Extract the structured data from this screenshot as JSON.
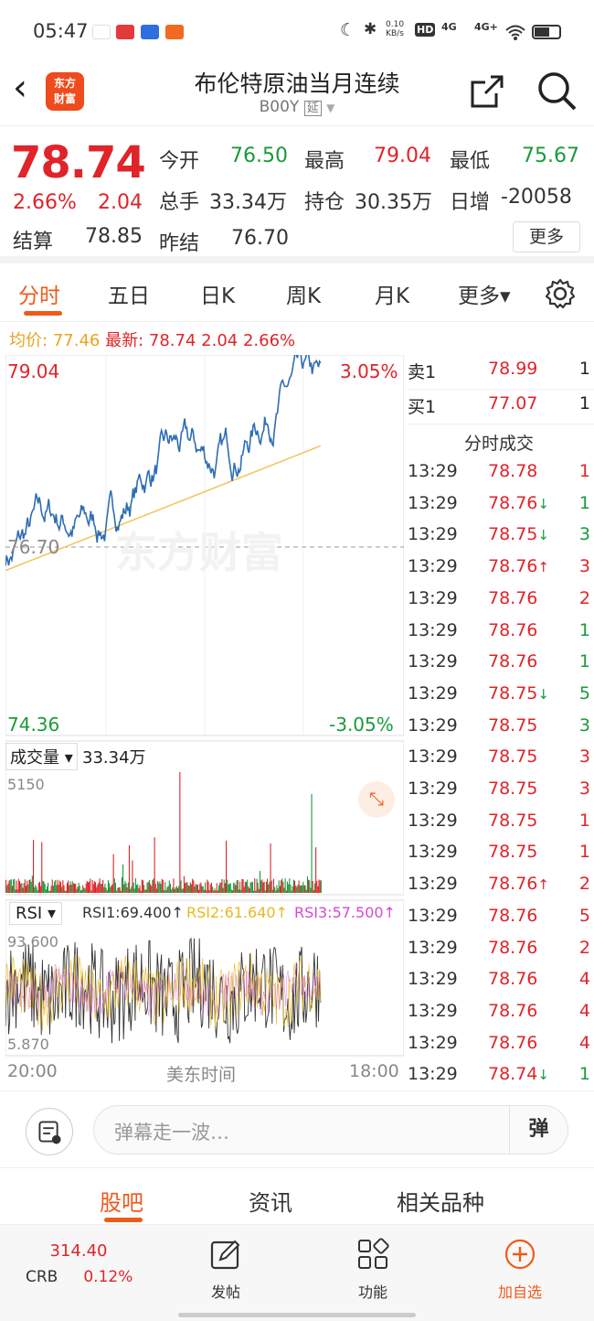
{
  "status": {
    "time": "05:47",
    "net_speed_top": "0.10",
    "net_speed_bottom": "KB/s",
    "hd": "HD",
    "sig1": "4G",
    "sig2": "4G+"
  },
  "nav": {
    "title": "布伦特原油当月连续",
    "code": "B00Y",
    "delay_tag": "延",
    "logo_line1": "东方",
    "logo_line2": "财富"
  },
  "quote": {
    "price": "78.74",
    "change_pct": "2.66%",
    "change": "2.04",
    "open_label": "今开",
    "open": "76.50",
    "high_label": "最高",
    "high": "79.04",
    "low_label": "最低",
    "low": "75.67",
    "volume_label": "总手",
    "volume": "33.34万",
    "position_label": "持仓",
    "position": "30.35万",
    "daily_add_label": "日增",
    "daily_add": "-20058",
    "settle_label": "结算",
    "settle": "78.85",
    "prev_settle_label": "昨结",
    "prev_settle": "76.70",
    "more": "更多"
  },
  "tabs": [
    "分时",
    "五日",
    "日K",
    "周K",
    "月K",
    "更多▾"
  ],
  "avg_line": {
    "avg_label": "均价:",
    "avg": "77.46",
    "latest_label": "最新:",
    "latest": "78.74",
    "change": "2.04",
    "pct": "2.66%"
  },
  "chart": {
    "y_top": "79.04",
    "y_top_pct": "3.05%",
    "y_bottom": "74.36",
    "y_bottom_pct": "-3.05%",
    "ref": "76.70",
    "watermark": "东方财富",
    "vol_label": "成交量",
    "vol_value": "33.34万",
    "vol_max": "5150",
    "rsi_label": "RSI",
    "rsi1": "RSI1:69.400↑",
    "rsi2": "RSI2:61.640↑",
    "rsi3": "RSI3:57.500↑",
    "rsi_top": "93.600",
    "rsi_bottom": "5.870",
    "x_start": "20:00",
    "x_mid": "美东时间",
    "x_end": "18:00",
    "colors": {
      "price": "#2f6db5",
      "avg": "#f3c35a",
      "up": "#e0242a",
      "down": "#1a9a3a",
      "rsi1": "#333333",
      "rsi2": "#e8b820",
      "rsi3": "#d24bd2"
    }
  },
  "orderbook": {
    "ask_label": "卖1",
    "ask_price": "78.99",
    "ask_vol": "1",
    "bid_label": "买1",
    "bid_price": "77.07",
    "bid_vol": "1",
    "trades_title": "分时成交",
    "trades": [
      {
        "t": "13:29",
        "p": "78.78",
        "a": "",
        "v": "1",
        "c": "red"
      },
      {
        "t": "13:29",
        "p": "78.76",
        "a": "↓",
        "v": "1",
        "c": "green"
      },
      {
        "t": "13:29",
        "p": "78.75",
        "a": "↓",
        "v": "3",
        "c": "green"
      },
      {
        "t": "13:29",
        "p": "78.76",
        "a": "↑",
        "v": "3",
        "c": "red"
      },
      {
        "t": "13:29",
        "p": "78.76",
        "a": "",
        "v": "2",
        "c": "red"
      },
      {
        "t": "13:29",
        "p": "78.76",
        "a": "",
        "v": "1",
        "c": "green"
      },
      {
        "t": "13:29",
        "p": "78.76",
        "a": "",
        "v": "1",
        "c": "green"
      },
      {
        "t": "13:29",
        "p": "78.75",
        "a": "↓",
        "v": "5",
        "c": "green"
      },
      {
        "t": "13:29",
        "p": "78.75",
        "a": "",
        "v": "3",
        "c": "green"
      },
      {
        "t": "13:29",
        "p": "78.75",
        "a": "",
        "v": "3",
        "c": "red"
      },
      {
        "t": "13:29",
        "p": "78.75",
        "a": "",
        "v": "3",
        "c": "red"
      },
      {
        "t": "13:29",
        "p": "78.75",
        "a": "",
        "v": "1",
        "c": "red"
      },
      {
        "t": "13:29",
        "p": "78.75",
        "a": "",
        "v": "1",
        "c": "red"
      },
      {
        "t": "13:29",
        "p": "78.76",
        "a": "↑",
        "v": "2",
        "c": "red"
      },
      {
        "t": "13:29",
        "p": "78.76",
        "a": "",
        "v": "5",
        "c": "red"
      },
      {
        "t": "13:29",
        "p": "78.76",
        "a": "",
        "v": "2",
        "c": "red"
      },
      {
        "t": "13:29",
        "p": "78.76",
        "a": "",
        "v": "4",
        "c": "red"
      },
      {
        "t": "13:29",
        "p": "78.76",
        "a": "",
        "v": "4",
        "c": "red"
      },
      {
        "t": "13:29",
        "p": "78.76",
        "a": "",
        "v": "4",
        "c": "red"
      },
      {
        "t": "13:29",
        "p": "78.74",
        "a": "↓",
        "v": "1",
        "c": "green"
      }
    ]
  },
  "danmu": {
    "placeholder": "弹幕走一波…",
    "button": "弹"
  },
  "subtabs": [
    "股吧",
    "资讯",
    "相关品种"
  ],
  "bottombar": {
    "crb_value": "314.40",
    "crb_label": "CRB",
    "crb_pct": "0.12%",
    "post": "发帖",
    "func": "功能",
    "add": "加自选"
  }
}
